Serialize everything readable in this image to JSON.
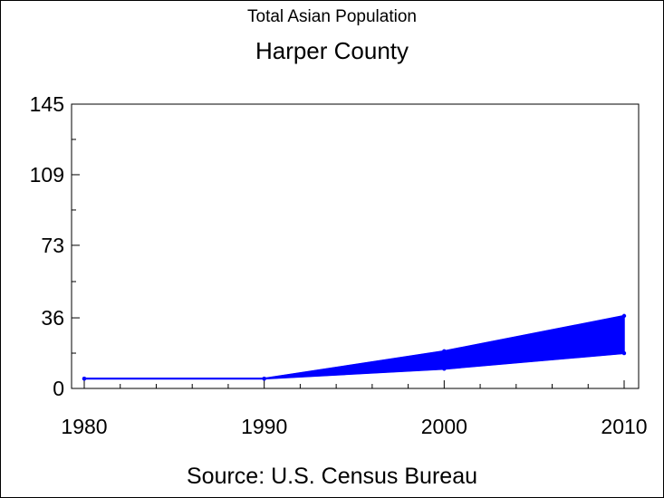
{
  "chart_data": {
    "type": "area",
    "title": "Total Asian Population",
    "subtitle": "Harper County",
    "source": "Source: U.S. Census Bureau",
    "xlabel": "",
    "ylabel": "",
    "x": [
      1980,
      1990,
      2000,
      2010
    ],
    "x_tick_labels": [
      "1980",
      "1990",
      "2000",
      "2010"
    ],
    "y_ticks": [
      0,
      36,
      73,
      109,
      145
    ],
    "y_tick_labels": [
      "0",
      "36",
      "73",
      "109",
      "145"
    ],
    "xlim": [
      1980,
      2010
    ],
    "ylim": [
      0,
      145
    ],
    "series": [
      {
        "values": [
          5,
          5,
          19,
          37
        ]
      },
      {
        "values": [
          5,
          5,
          10,
          18
        ]
      }
    ],
    "colors": {
      "line": "#0000ff",
      "fill": "#0000ff",
      "axis": "#000000"
    },
    "grid": false,
    "legend": "none"
  }
}
